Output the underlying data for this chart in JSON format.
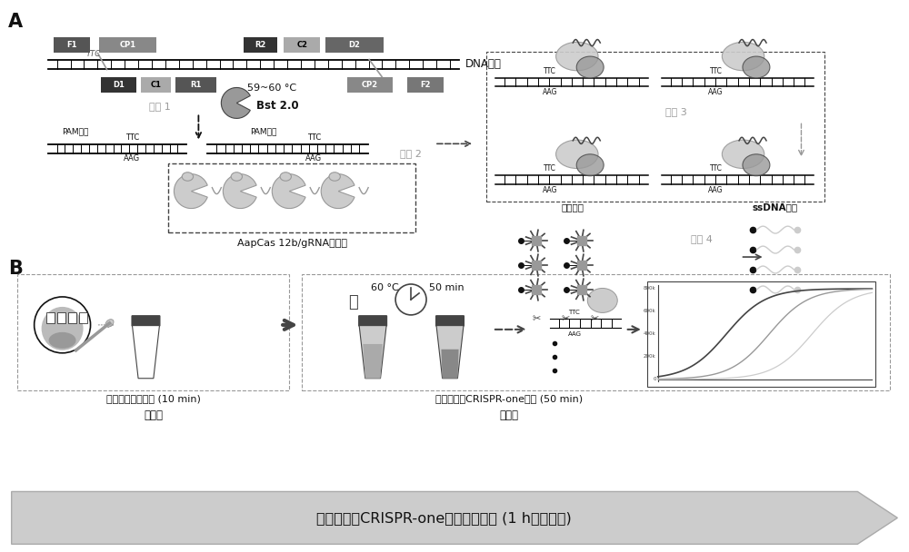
{
  "bg_color": "#ffffff",
  "fig_width": 10.0,
  "fig_height": 6.08,
  "title_bottom_bold": "基于荧光的CRISPR-one试验工作流程",
  "title_bottom_normal": " (1 h以内完成)",
  "label_A": "A",
  "label_B": "B",
  "dna_label": "DNA模板",
  "step1_label": "步骤 1",
  "step2_label": "步骤 2",
  "step3_label": "步骤 3",
  "step4_label": "步骤 4",
  "bst_label": "Bst 2.0",
  "temp_label": "59~60 °C",
  "pam_label": "PAM位点",
  "cas_label": "AapCas 12b/gRNA复合物",
  "rev_cut_label": "反式剪切",
  "ssdna_label": "ssDNA探针",
  "step1_cn_line1": "快速提取样本核酸 (10 min)",
  "step1_cn_line2": "步骤一",
  "step2_cn_line1": "基于荧光的CRISPR-one反应 (50 min)",
  "step2_cn_line2": "步骤二",
  "temp60": "60 °C",
  "time50": "50 min",
  "gray_light": "#cccccc",
  "gray_med": "#999999",
  "gray_dark": "#444444",
  "black": "#111111"
}
